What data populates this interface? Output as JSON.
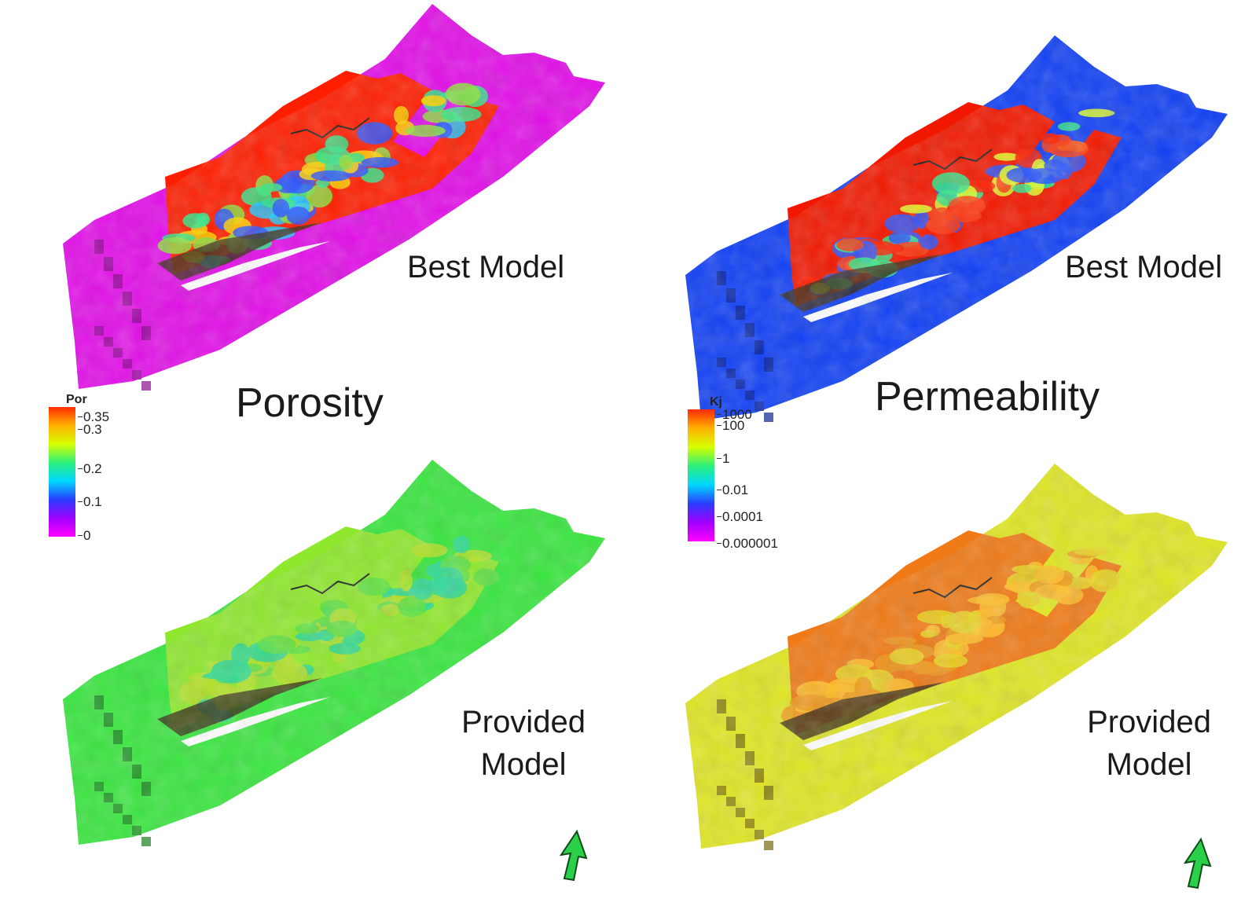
{
  "labels": {
    "top_left": "Best Model",
    "top_right": "Best Model",
    "bottom_left_line1": "Provided",
    "bottom_left_line2": "Model",
    "bottom_right_line1": "Provided",
    "bottom_right_line2": "Model",
    "porosity": "Porosity",
    "permeability": "Permeability"
  },
  "legends": {
    "porosity": {
      "title": "Por",
      "ticks": [
        "0.35",
        "0.3",
        "0.2",
        "0.1",
        "0"
      ],
      "colors": [
        "#ff2a00",
        "#ffb000",
        "#d6ff00",
        "#2cf07a",
        "#00d8ff",
        "#2a3cff",
        "#a000ff",
        "#ff00ff"
      ]
    },
    "permeability": {
      "title": "Kj",
      "ticks": [
        "1000",
        "100",
        "1",
        "0.01",
        "0.0001",
        "0.000001"
      ],
      "colors": [
        "#ff2a00",
        "#ffb000",
        "#d6ff00",
        "#2cf07a",
        "#00d8ff",
        "#2a3cff",
        "#a000ff",
        "#ff00ff"
      ]
    }
  },
  "panels": {
    "tl": {
      "base": "#e20ee8",
      "dark": "#8a0a8e",
      "core": [
        "#ff1e00",
        "#ffd400",
        "#33e68a",
        "#1ec8ff",
        "#2a55ff",
        "#8ce13c"
      ]
    },
    "tr": {
      "base": "#1140f5",
      "dark": "#0a2290",
      "core": [
        "#f21800",
        "#ff3a10",
        "#33e68a",
        "#e1ff2b",
        "#2a55ff",
        "#ff1e00"
      ]
    },
    "bl": {
      "base": "#39e63f",
      "dark": "#1f7d25",
      "core": [
        "#8fe82e",
        "#b6e02a",
        "#2ed89a",
        "#5de045"
      ]
    },
    "br": {
      "base": "#e0e624",
      "dark": "#7a6a10",
      "core": [
        "#f07a16",
        "#ee9a1e",
        "#ffc02a",
        "#e8d626"
      ]
    }
  },
  "arrow_color": "#2bd04a"
}
